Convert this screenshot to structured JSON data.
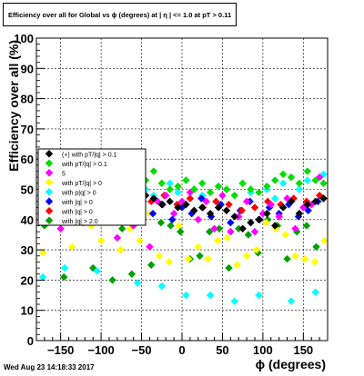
{
  "title": "Efficiency over all for Global vs ϕ (degrees) at | η | <= 1.0 at pT > 0.11",
  "footer_timestamp": "Wed Aug 23 14:18:33 2017",
  "chart_data": {
    "type": "scatter",
    "xlabel": "ϕ (degrees)",
    "ylabel": "Efficiency over all (%)",
    "xlim": [
      -180,
      180
    ],
    "ylim": [
      0,
      100
    ],
    "x_ticks": [
      -150,
      -100,
      -50,
      0,
      50,
      100,
      150
    ],
    "x_tick_labels": [
      "−150",
      "−100",
      "−50",
      "0",
      "50",
      "100",
      "150"
    ],
    "y_ticks": [
      0,
      10,
      20,
      30,
      40,
      50,
      60,
      70,
      80,
      90,
      100
    ],
    "y_tick_labels": [
      "0",
      "10",
      "20",
      "30",
      "40",
      "50",
      "60",
      "70",
      "80",
      "90",
      "100"
    ],
    "grid": true,
    "legend_position": "left-middle",
    "legend": [
      {
        "label": "(+) with pT/|q| > 0.1",
        "color": "#000000",
        "marker": "diamond"
      },
      {
        "label": "with pT/|q| > 0.1",
        "color": "#00dd00",
        "marker": "diamond"
      },
      {
        "label": "5",
        "color": "#ff00ff",
        "marker": "diamond"
      },
      {
        "label": "with pT/|q| > 0",
        "color": "#ffff00",
        "marker": "diamond"
      },
      {
        "label": "with p|q| > 0",
        "color": "#00ffff",
        "marker": "diamond"
      },
      {
        "label": "with |q| > 0",
        "color": "#0000ff",
        "marker": "diamond"
      },
      {
        "label": "with |q| > 0",
        "color": "#ff0000",
        "marker": "diamond"
      },
      {
        "label": "with |q| > 2.0",
        "color": "#00a000",
        "marker": "diamond"
      }
    ],
    "series": [
      {
        "color": "#000000",
        "x": [
          -174,
          -165,
          -155,
          -145,
          -135,
          -125,
          -115,
          -105,
          -95,
          -85,
          -75,
          -65,
          -55,
          -45,
          -35,
          -25,
          -15,
          -5,
          5,
          15,
          25,
          35,
          45,
          55,
          65,
          75,
          85,
          95,
          105,
          115,
          125,
          135,
          145,
          155,
          165,
          175
        ],
        "y": [
          45,
          46,
          48,
          47,
          49,
          50,
          48,
          50,
          51,
          49,
          48,
          47,
          49,
          48,
          47,
          45,
          46,
          44,
          45,
          43,
          44,
          42,
          44,
          43,
          41,
          37,
          39,
          40,
          42,
          38,
          44,
          46,
          42,
          45,
          46,
          47
        ]
      },
      {
        "color": "#00dd00",
        "x": [
          -174,
          -165,
          -155,
          -145,
          -135,
          -125,
          -115,
          -105,
          -95,
          -85,
          -75,
          -65,
          -55,
          -45,
          -35,
          -25,
          -15,
          -5,
          5,
          15,
          25,
          35,
          45,
          55,
          65,
          75,
          85,
          95,
          105,
          115,
          125,
          135,
          145,
          155,
          165,
          175
        ],
        "y": [
          55,
          54,
          56,
          53,
          57,
          55,
          54,
          56,
          55,
          53,
          54,
          52,
          55,
          53,
          56,
          52,
          50,
          51,
          53,
          50,
          52,
          49,
          51,
          50,
          48,
          52,
          50,
          49,
          51,
          53,
          55,
          54,
          52,
          56,
          53,
          52
        ]
      },
      {
        "color": "#ff00ff",
        "x": [
          -170,
          -160,
          -150,
          -140,
          -130,
          -120,
          -110,
          -100,
          -90,
          -80,
          -70,
          -60,
          -50,
          -40,
          -30,
          -20,
          -10,
          0,
          10,
          20,
          30,
          40,
          50,
          60,
          70,
          80,
          90,
          100,
          110,
          120,
          130,
          140,
          150,
          160,
          170
        ],
        "y": [
          42,
          41,
          37,
          44,
          45,
          47,
          43,
          39,
          46,
          34,
          44,
          38,
          45,
          31,
          46,
          48,
          42,
          46,
          49,
          40,
          46,
          37,
          48,
          36,
          41,
          46,
          36,
          42,
          45,
          41,
          47,
          37,
          44,
          45,
          54
        ]
      },
      {
        "color": "#ffff00",
        "x": [
          -172,
          -160,
          -148,
          -136,
          -124,
          -112,
          -100,
          -88,
          -76,
          -64,
          -52,
          -40,
          -28,
          -16,
          -4,
          8,
          20,
          32,
          44,
          56,
          68,
          80,
          92,
          104,
          116,
          128,
          140,
          152,
          164,
          176
        ],
        "y": [
          29,
          40,
          44,
          31,
          42,
          38,
          33,
          41,
          30,
          37,
          33,
          42,
          28,
          26,
          38,
          27,
          31,
          27,
          33,
          34,
          25,
          28,
          30,
          39,
          37,
          35,
          28,
          27,
          26,
          33
        ]
      },
      {
        "color": "#00ffff",
        "x": [
          -172,
          -165,
          -155,
          -145,
          -135,
          -125,
          -115,
          -105,
          -95,
          -85,
          -75,
          -65,
          -55,
          -45,
          -35,
          -25,
          -15,
          -5,
          5,
          15,
          25,
          35,
          45,
          55,
          65,
          75,
          85,
          95,
          105,
          115,
          125,
          135,
          145,
          155,
          165,
          175
        ],
        "y": [
          21,
          52,
          48,
          24,
          50,
          51,
          52,
          23,
          50,
          49,
          51,
          47,
          19,
          50,
          48,
          18,
          52,
          49,
          15,
          50,
          48,
          15,
          51,
          50,
          13,
          52,
          49,
          15,
          50,
          47,
          52,
          13,
          50,
          53,
          16,
          55
        ]
      },
      {
        "color": "#0000ff",
        "x": [
          -168,
          -156,
          -144,
          -132,
          -120,
          -108,
          -96,
          -84,
          -72,
          -60,
          -48,
          -36,
          -24,
          -12,
          0,
          12,
          24,
          36,
          48,
          60,
          72,
          84,
          96,
          108,
          120,
          132,
          144,
          156,
          168
        ],
        "y": [
          42,
          45,
          40,
          47,
          43,
          49,
          41,
          44,
          48,
          39,
          46,
          42,
          45,
          40,
          44,
          42,
          47,
          41,
          45,
          39,
          43,
          46,
          40,
          44,
          42,
          45,
          41,
          43,
          46
        ]
      },
      {
        "color": "#ff0000",
        "x": [
          -166,
          -150,
          -134,
          -118,
          -102,
          -86,
          -70,
          -54,
          -38,
          -22,
          -6,
          10,
          26,
          42,
          58,
          74,
          90,
          106,
          122,
          138,
          154,
          170
        ],
        "y": [
          47,
          49,
          46,
          50,
          48,
          51,
          47,
          49,
          46,
          48,
          45,
          47,
          44,
          46,
          45,
          43,
          44,
          46,
          45,
          47,
          46,
          48
        ]
      },
      {
        "color": "#00a000",
        "x": [
          -170,
          -158,
          -146,
          -134,
          -122,
          -110,
          -98,
          -86,
          -74,
          -62,
          -50,
          -38,
          -26,
          -14,
          -2,
          10,
          22,
          34,
          46,
          58,
          70,
          82,
          94,
          106,
          118,
          130,
          142,
          154,
          166
        ],
        "y": [
          38,
          40,
          21,
          43,
          39,
          24,
          41,
          20,
          37,
          22,
          40,
          25,
          39,
          38,
          36,
          27,
          28,
          36,
          37,
          24,
          37,
          35,
          29,
          40,
          38,
          27,
          36,
          38,
          31
        ]
      }
    ]
  }
}
